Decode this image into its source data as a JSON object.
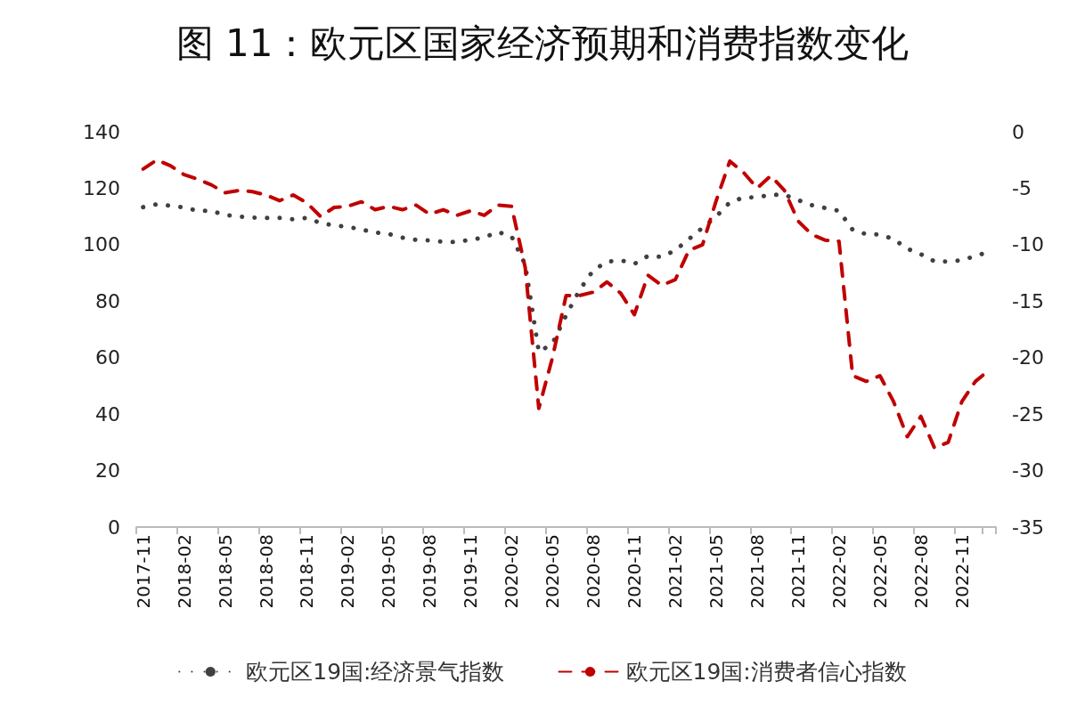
{
  "chart_data": {
    "type": "line",
    "title": "图 11：欧元区国家经济预期和消费指数变化",
    "categories": [
      "2017-11",
      null,
      null,
      "2018-02",
      null,
      null,
      "2018-05",
      null,
      null,
      "2018-08",
      null,
      null,
      "2018-11",
      null,
      null,
      "2019-02",
      null,
      null,
      "2019-05",
      null,
      null,
      "2019-08",
      null,
      null,
      "2019-11",
      null,
      null,
      "2020-02",
      null,
      null,
      "2020-05",
      null,
      null,
      "2020-08",
      null,
      null,
      "2020-11",
      null,
      null,
      "2021-02",
      null,
      null,
      "2021-05",
      null,
      null,
      "2021-08",
      null,
      null,
      "2021-11",
      null,
      null,
      "2022-02",
      null,
      null,
      "2022-05",
      null,
      null,
      "2022-08",
      null,
      null,
      "2022-11",
      null,
      null
    ],
    "series": [
      {
        "name": "欧元区19国:经济景气指数",
        "color": "#404040",
        "line_style": "dotted",
        "values": [
          113.3,
          114.3,
          113.8,
          113.2,
          112,
          112,
          110.5,
          110,
          109.6,
          109.5,
          109.5,
          109,
          109.5,
          107.7,
          106.8,
          106.3,
          105.4,
          104.3,
          103.8,
          102.5,
          101.7,
          101.5,
          101,
          101,
          101.7,
          102.6,
          104.5,
          103,
          93,
          62,
          65,
          75,
          84,
          91,
          94,
          94.5,
          93.2,
          96,
          95.7,
          98,
          102,
          106,
          110,
          115,
          116.7,
          116.8,
          117.7,
          117.7,
          115.8,
          114,
          113,
          112,
          105.3,
          103.7,
          103.6,
          102,
          98.6,
          96.6,
          94.1,
          94,
          94.5,
          96,
          97.5
        ]
      },
      {
        "name": "欧元区19国:消费者信心指数",
        "color": "#c00000",
        "line_style": "dashed",
        "axis": "y2",
        "values": [
          -3.3,
          -2.5,
          -3,
          -3.8,
          -4.2,
          -4.7,
          -5.4,
          -5.2,
          -5.3,
          -5.6,
          -6.1,
          -5.6,
          -6.3,
          -7.5,
          -6.7,
          -6.6,
          -6.2,
          -6.9,
          -6.6,
          -6.9,
          -6.5,
          -7.3,
          -6.9,
          -7.4,
          -7,
          -7.4,
          -6.5,
          -6.6,
          -12,
          -24.5,
          -20,
          -14.5,
          -14.5,
          -14.2,
          -13.3,
          -14.3,
          -16.2,
          -12.7,
          -13.6,
          -13.1,
          -10.5,
          -10,
          -6.1,
          -2.6,
          -3.6,
          -5,
          -3.9,
          -5.2,
          -7.9,
          -9.1,
          -9.6,
          -9.7,
          -21.6,
          -22.1,
          -21.6,
          -23.9,
          -27,
          -25.2,
          -28,
          -27.5,
          -23.9,
          -22.1,
          -21.1
        ]
      }
    ],
    "ylim": [
      0,
      140
    ],
    "yticks": [
      0,
      20,
      40,
      60,
      80,
      100,
      120,
      140
    ],
    "y2lim": [
      -35,
      0
    ],
    "y2ticks": [
      -35,
      -30,
      -25,
      -20,
      -15,
      -10,
      -5,
      0
    ],
    "grid": false,
    "legend": "bottom",
    "marker": "none"
  }
}
